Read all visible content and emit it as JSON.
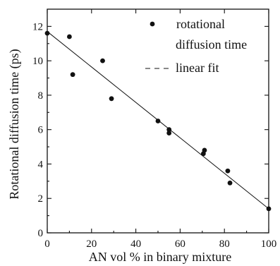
{
  "chart_data": {
    "type": "scatter",
    "title": "",
    "xlabel": "AN vol % in binary mixture",
    "ylabel": "Rotational diffusion time (ps)",
    "xlim": [
      0,
      100
    ],
    "ylim": [
      0,
      13
    ],
    "x_ticks": [
      "0",
      "20",
      "40",
      "60",
      "80",
      "100"
    ],
    "y_ticks": [
      "0",
      "2",
      "4",
      "6",
      "8",
      "10",
      "12"
    ],
    "grid": false,
    "legend_position": "top-right",
    "series": [
      {
        "name": "rotational diffusion time",
        "kind": "points",
        "x": [
          0,
          10,
          11.5,
          25,
          29,
          50,
          55,
          55,
          70.5,
          71,
          81.5,
          82.5,
          100
        ],
        "y": [
          11.6,
          11.4,
          9.2,
          10.0,
          7.8,
          6.5,
          6.0,
          5.8,
          4.6,
          4.8,
          3.6,
          2.9,
          1.4
        ]
      },
      {
        "name": "linear fit",
        "kind": "line",
        "x": [
          0,
          100
        ],
        "y": [
          11.7,
          1.4
        ]
      }
    ],
    "legend": {
      "entry1_line1": "rotational",
      "entry1_line2": "diffusion time",
      "entry2": "linear fit"
    },
    "colors": {
      "ink": "#111111"
    }
  }
}
